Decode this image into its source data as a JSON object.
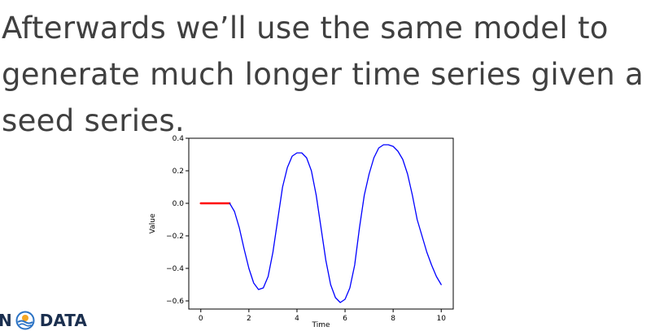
{
  "slide": {
    "lines": [
      "Afterwards we’ll use the same model to",
      "generate much longer time series given a",
      "seed series."
    ]
  },
  "logo": {
    "text_left": "N",
    "text_right": "DATA",
    "icon": "ocean-wave-logo-icon"
  },
  "chart_data": {
    "type": "line",
    "xlabel": "Time",
    "ylabel": "Value",
    "xlim": [
      -0.5,
      10.5
    ],
    "ylim": [
      -0.65,
      0.4
    ],
    "xticks": [
      0,
      2,
      4,
      6,
      8,
      10
    ],
    "xtick_labels": [
      "0",
      "2",
      "4",
      "6",
      "8",
      "10"
    ],
    "yticks": [
      0.4,
      0.2,
      0.0,
      -0.2,
      -0.4,
      -0.6
    ],
    "ytick_labels": [
      "0.4",
      "0.2",
      "0.0",
      "−0.2",
      "−0.4",
      "−0.6"
    ],
    "grid": false,
    "series": [
      {
        "color": "#ff0000",
        "x": [
          0,
          0.25,
          0.5,
          0.75,
          1.0,
          1.2
        ],
        "y": [
          0,
          0,
          0,
          0,
          0,
          0
        ]
      },
      {
        "color": "#0000ff",
        "x": [
          1.2,
          1.4,
          1.6,
          1.8,
          2.0,
          2.2,
          2.4,
          2.6,
          2.8,
          3.0,
          3.2,
          3.4,
          3.6,
          3.8,
          4.0,
          4.2,
          4.4,
          4.6,
          4.8,
          5.0,
          5.2,
          5.4,
          5.6,
          5.8,
          6.0,
          6.2,
          6.4,
          6.6,
          6.8,
          7.0,
          7.2,
          7.4,
          7.6,
          7.8,
          8.0,
          8.2,
          8.4,
          8.6,
          8.8,
          9.0,
          9.2,
          9.4,
          9.6,
          9.8,
          10.0
        ],
        "y": [
          0.0,
          -0.05,
          -0.15,
          -0.28,
          -0.4,
          -0.49,
          -0.53,
          -0.52,
          -0.45,
          -0.3,
          -0.1,
          0.1,
          0.22,
          0.29,
          0.31,
          0.31,
          0.28,
          0.2,
          0.05,
          -0.15,
          -0.35,
          -0.5,
          -0.58,
          -0.61,
          -0.59,
          -0.52,
          -0.38,
          -0.15,
          0.05,
          0.18,
          0.28,
          0.34,
          0.36,
          0.36,
          0.35,
          0.32,
          0.27,
          0.18,
          0.05,
          -0.1,
          -0.2,
          -0.3,
          -0.38,
          -0.45,
          -0.5
        ]
      }
    ]
  }
}
